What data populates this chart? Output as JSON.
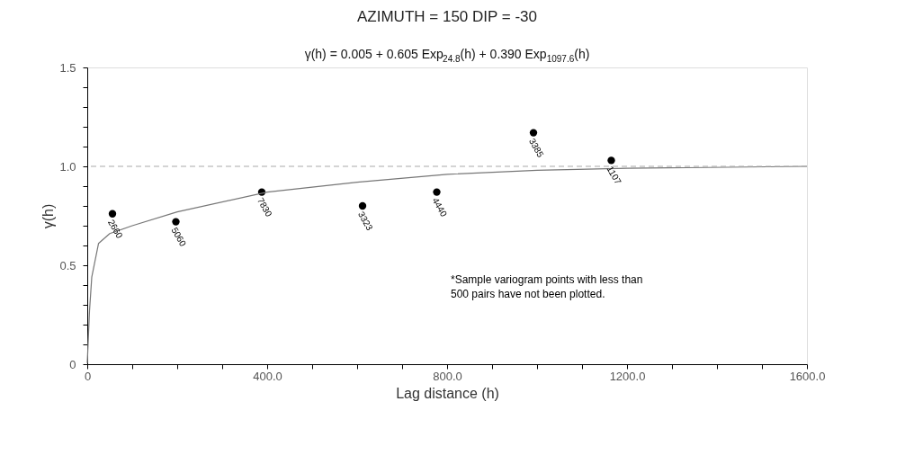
{
  "chart_data": {
    "type": "scatter",
    "title": "AZIMUTH = 150   DIP = -30",
    "subtitle": "γ(h) = 0.005 + 0.605 Exp$_{24.8}$(h) + 0.390 Exp$_{1097.6}$(h)",
    "xlabel": "Lag distance (h)",
    "ylabel": "γ(h)",
    "series": [
      {
        "type": "scatter",
        "color": "#000000",
        "marker": "circle",
        "x": [
          56,
          197,
          388,
          612,
          777,
          992,
          1165
        ],
        "values": [
          0.76,
          0.72,
          0.87,
          0.8,
          0.87,
          1.17,
          1.03
        ]
      },
      {
        "type": "line",
        "color": "#777777",
        "line_style": "solid",
        "marker": "none",
        "x": [
          0,
          5,
          10,
          25,
          50,
          100,
          200,
          400,
          600,
          800,
          1000,
          1200,
          1600
        ],
        "values": [
          0.005,
          0.27,
          0.44,
          0.61,
          0.66,
          0.7,
          0.77,
          0.87,
          0.92,
          0.96,
          0.98,
          0.99,
          1.0
        ]
      }
    ],
    "ref_lines": [
      {
        "axis": "y",
        "value": 1.0,
        "color": "#aaaaaa",
        "line_style": "dashed"
      }
    ],
    "annotations": [
      {
        "text": "2660",
        "x": 56,
        "y": 0.76
      },
      {
        "text": "5060",
        "x": 197,
        "y": 0.72
      },
      {
        "text": "7830",
        "x": 388,
        "y": 0.87
      },
      {
        "text": "3323",
        "x": 612,
        "y": 0.8
      },
      {
        "text": "4440",
        "x": 777,
        "y": 0.87
      },
      {
        "text": "3385",
        "x": 992,
        "y": 1.17
      },
      {
        "text": "1107",
        "x": 1165,
        "y": 1.03
      },
      "*Sample variogram points with less than",
      "500 pairs have not been plotted."
    ],
    "xlim": [
      0,
      1600
    ],
    "ylim": [
      0,
      1.5
    ],
    "xticks": [
      {
        "value": 0,
        "label": "0"
      },
      {
        "value": 100,
        "label": null
      },
      {
        "value": 200,
        "label": null
      },
      {
        "value": 300,
        "label": null
      },
      {
        "value": 400,
        "label": "400.0"
      },
      {
        "value": 500,
        "label": null
      },
      {
        "value": 600,
        "label": null
      },
      {
        "value": 700,
        "label": null
      },
      {
        "value": 800,
        "label": "800.0"
      },
      {
        "value": 900,
        "label": null
      },
      {
        "value": 1000,
        "label": null
      },
      {
        "value": 1100,
        "label": null
      },
      {
        "value": 1200,
        "label": "1200.0"
      },
      {
        "value": 1300,
        "label": null
      },
      {
        "value": 1400,
        "label": null
      },
      {
        "value": 1500,
        "label": null
      },
      {
        "value": 1600,
        "label": "1600.0"
      }
    ],
    "yticks": [
      {
        "value": 0,
        "label": "0"
      },
      {
        "value": 0.1,
        "label": null
      },
      {
        "value": 0.2,
        "label": null
      },
      {
        "value": 0.3,
        "label": null
      },
      {
        "value": 0.4,
        "label": null
      },
      {
        "value": 0.5,
        "label": "0.5"
      },
      {
        "value": 0.6,
        "label": null
      },
      {
        "value": 0.7,
        "label": null
      },
      {
        "value": 0.8,
        "label": null
      },
      {
        "value": 0.9,
        "label": null
      },
      {
        "value": 1.0,
        "label": "1.0"
      },
      {
        "value": 1.1,
        "label": null
      },
      {
        "value": 1.2,
        "label": null
      },
      {
        "value": 1.3,
        "label": null
      },
      {
        "value": 1.4,
        "label": null
      },
      {
        "value": 1.5,
        "label": "1.5"
      }
    ],
    "grid": false
  }
}
